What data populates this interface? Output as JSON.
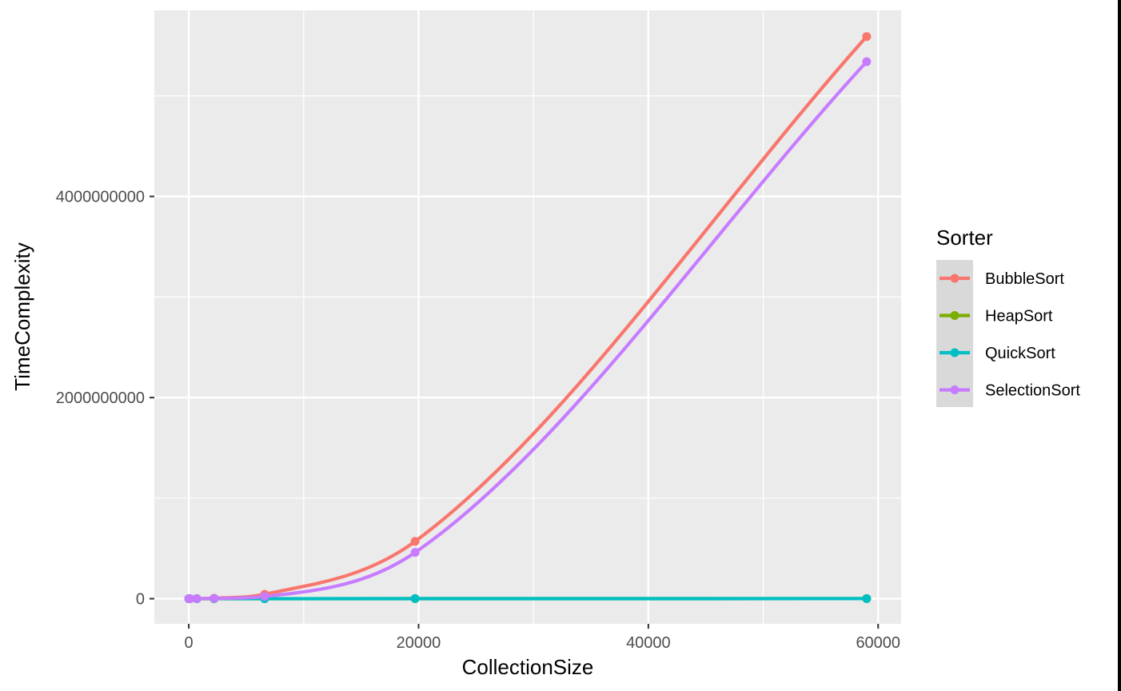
{
  "chart_data": {
    "type": "line",
    "xlabel": "CollectionSize",
    "ylabel": "TimeComplexity",
    "xlim": [
      -3000,
      62000
    ],
    "ylim": [
      -250000000,
      5850000000
    ],
    "x_ticks": [
      0,
      20000,
      40000,
      60000
    ],
    "x_tick_labels": [
      "0",
      "20000",
      "40000",
      "60000"
    ],
    "y_ticks": [
      0,
      2000000000,
      4000000000
    ],
    "y_tick_labels": [
      "0",
      "2000000000",
      "4000000000"
    ],
    "grid": true,
    "legend": {
      "title": "Sorter",
      "position": "right"
    },
    "series": [
      {
        "name": "BubbleSort",
        "color": "#F8766D",
        "x": [
          0,
          100,
          700,
          2200,
          6600,
          19700,
          59000
        ],
        "y": [
          0,
          10000,
          490000,
          4840000,
          43560000,
          570000000,
          5590000000
        ]
      },
      {
        "name": "HeapSort",
        "color": "#7CAE00",
        "x": [
          0,
          100,
          700,
          2200,
          6600,
          19700,
          59000
        ],
        "y": [
          0,
          660,
          6600,
          24000,
          84000,
          280000,
          930000
        ]
      },
      {
        "name": "QuickSort",
        "color": "#00BFC4",
        "x": [
          0,
          100,
          700,
          2200,
          6600,
          19700,
          59000
        ],
        "y": [
          0,
          660,
          6600,
          24000,
          84000,
          280000,
          930000
        ]
      },
      {
        "name": "SelectionSort",
        "color": "#C77CFF",
        "x": [
          0,
          100,
          700,
          2200,
          6600,
          19700,
          59000
        ],
        "y": [
          0,
          5000,
          245000,
          2420000,
          21780000,
          460000000,
          5340000000
        ]
      }
    ]
  }
}
